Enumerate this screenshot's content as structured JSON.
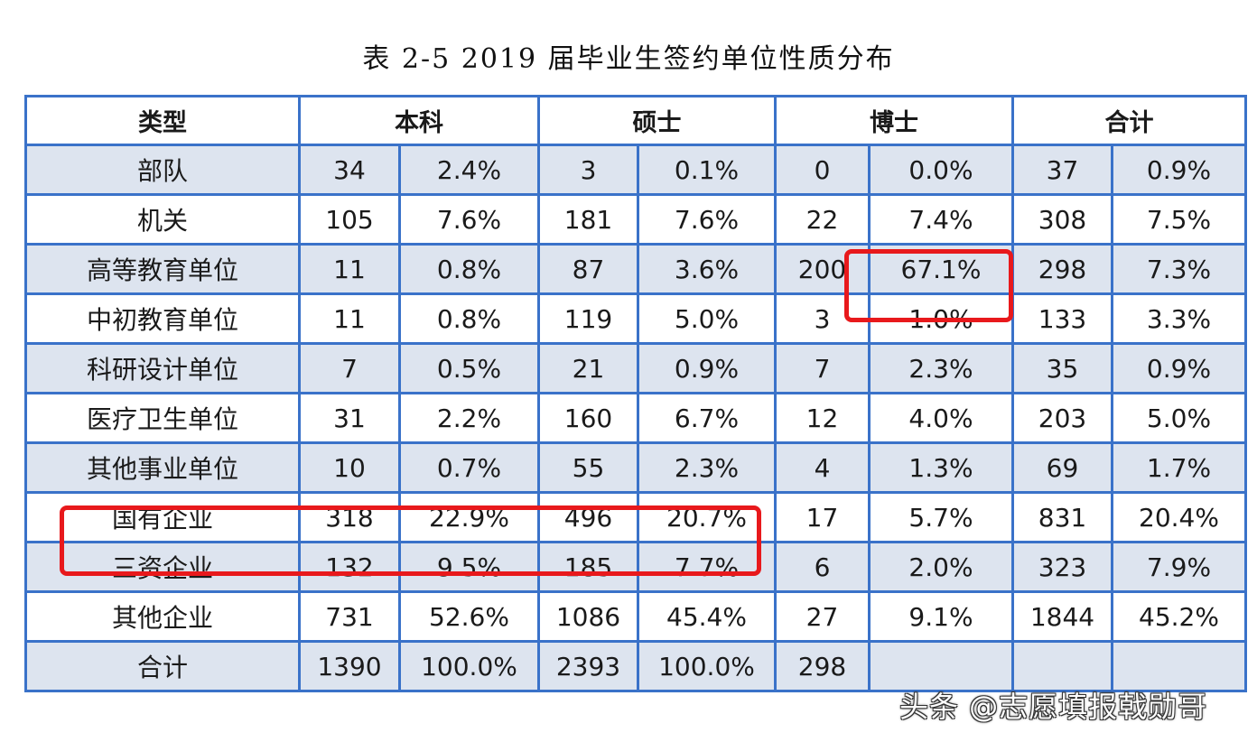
{
  "title": "表 2-5 2019 届毕业生签约单位性质分布",
  "header": {
    "type": "类型",
    "groups": [
      "本科",
      "硕士",
      "博士",
      "合计"
    ]
  },
  "rows": [
    {
      "type": "部队",
      "bk_n": "34",
      "bk_p": "2.4%",
      "ss_n": "3",
      "ss_p": "0.1%",
      "bs_n": "0",
      "bs_p": "0.0%",
      "hj_n": "37",
      "hj_p": "0.9%"
    },
    {
      "type": "机关",
      "bk_n": "105",
      "bk_p": "7.6%",
      "ss_n": "181",
      "ss_p": "7.6%",
      "bs_n": "22",
      "bs_p": "7.4%",
      "hj_n": "308",
      "hj_p": "7.5%"
    },
    {
      "type": "高等教育单位",
      "bk_n": "11",
      "bk_p": "0.8%",
      "ss_n": "87",
      "ss_p": "3.6%",
      "bs_n": "200",
      "bs_p": "67.1%",
      "hj_n": "298",
      "hj_p": "7.3%"
    },
    {
      "type": "中初教育单位",
      "bk_n": "11",
      "bk_p": "0.8%",
      "ss_n": "119",
      "ss_p": "5.0%",
      "bs_n": "3",
      "bs_p": "1.0%",
      "hj_n": "133",
      "hj_p": "3.3%"
    },
    {
      "type": "科研设计单位",
      "bk_n": "7",
      "bk_p": "0.5%",
      "ss_n": "21",
      "ss_p": "0.9%",
      "bs_n": "7",
      "bs_p": "2.3%",
      "hj_n": "35",
      "hj_p": "0.9%"
    },
    {
      "type": "医疗卫生单位",
      "bk_n": "31",
      "bk_p": "2.2%",
      "ss_n": "160",
      "ss_p": "6.7%",
      "bs_n": "12",
      "bs_p": "4.0%",
      "hj_n": "203",
      "hj_p": "5.0%"
    },
    {
      "type": "其他事业单位",
      "bk_n": "10",
      "bk_p": "0.7%",
      "ss_n": "55",
      "ss_p": "2.3%",
      "bs_n": "4",
      "bs_p": "1.3%",
      "hj_n": "69",
      "hj_p": "1.7%"
    },
    {
      "type": "国有企业",
      "bk_n": "318",
      "bk_p": "22.9%",
      "ss_n": "496",
      "ss_p": "20.7%",
      "bs_n": "17",
      "bs_p": "5.7%",
      "hj_n": "831",
      "hj_p": "20.4%"
    },
    {
      "type": "三资企业",
      "bk_n": "132",
      "bk_p": "9.5%",
      "ss_n": "185",
      "ss_p": "7.7%",
      "bs_n": "6",
      "bs_p": "2.0%",
      "hj_n": "323",
      "hj_p": "7.9%"
    },
    {
      "type": "其他企业",
      "bk_n": "731",
      "bk_p": "52.6%",
      "ss_n": "1086",
      "ss_p": "45.4%",
      "bs_n": "27",
      "bs_p": "9.1%",
      "hj_n": "1844",
      "hj_p": "45.2%"
    },
    {
      "type": "合计",
      "bk_n": "1390",
      "bk_p": "100.0%",
      "ss_n": "2393",
      "ss_p": "100.0%",
      "bs_n": "298",
      "bs_p": "",
      "hj_n": "",
      "hj_p": ""
    }
  ],
  "watermark": "头条 @志愿填报戟勋哥",
  "colors": {
    "border": "#3a72c9",
    "shade": "#dde4ef",
    "highlight": "#e8191c"
  }
}
